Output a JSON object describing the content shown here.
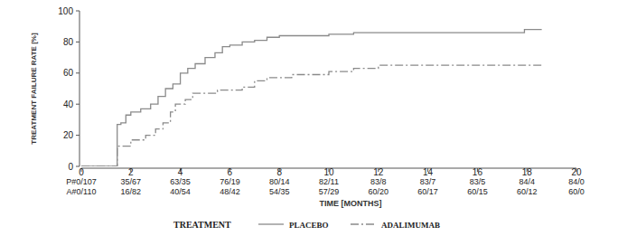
{
  "chart_data": {
    "type": "step",
    "y_label": "TREATMENT FAILURE RATE [%]",
    "x_label": "TIME [MONTHS]",
    "legend_title": "TREATMENT",
    "legend": "bottom",
    "grid": false,
    "xlim": [
      0,
      20
    ],
    "ylim": [
      0,
      100
    ],
    "xticks": [
      0,
      2,
      4,
      6,
      8,
      10,
      12,
      14,
      16,
      18,
      20
    ],
    "yticks": [
      0,
      20,
      40,
      60,
      80,
      100
    ],
    "series": [
      {
        "name": "PLACEBO",
        "color": "#8a8a8a",
        "line_style": "solid",
        "x": [
          0,
          1.45,
          1.6,
          1.8,
          2.0,
          2.4,
          2.8,
          3.1,
          3.4,
          3.7,
          4.0,
          4.3,
          4.6,
          5.0,
          5.4,
          5.7,
          6.0,
          6.5,
          7.0,
          7.5,
          8.0,
          10.0,
          11.0,
          17.9,
          18.6
        ],
        "values": [
          0,
          27,
          28,
          33,
          35,
          37,
          40,
          45,
          50,
          53,
          60,
          63,
          66,
          70,
          73,
          77,
          78,
          80,
          81,
          83,
          84,
          85,
          86,
          88,
          88
        ]
      },
      {
        "name": "ADALIMUMAB",
        "color": "#8a8a8a",
        "line_style": "dashdot",
        "x": [
          0,
          1.45,
          2.0,
          2.6,
          3.0,
          3.3,
          3.6,
          3.8,
          4.2,
          4.5,
          5.5,
          6.5,
          7.0,
          7.5,
          8.5,
          10.0,
          11.0,
          12.0,
          18.6
        ],
        "values": [
          0,
          13,
          17,
          20,
          24,
          28,
          35,
          40,
          43,
          47,
          49,
          51,
          55,
          57,
          59,
          61,
          63,
          65,
          65
        ]
      }
    ],
    "at_risk": {
      "x": [
        0,
        2,
        4,
        6,
        8,
        10,
        12,
        14,
        16,
        18,
        20
      ],
      "rows": [
        [
          "P#0/107",
          "35/67",
          "63/35",
          "76/19",
          "80/14",
          "82/11",
          "83/8",
          "83/7",
          "83/5",
          "84/4",
          "84/0"
        ],
        [
          "A#0/110",
          "16/82",
          "40/54",
          "48/42",
          "54/35",
          "57/29",
          "60/20",
          "60/17",
          "60/15",
          "60/12",
          "60/0"
        ]
      ]
    }
  }
}
